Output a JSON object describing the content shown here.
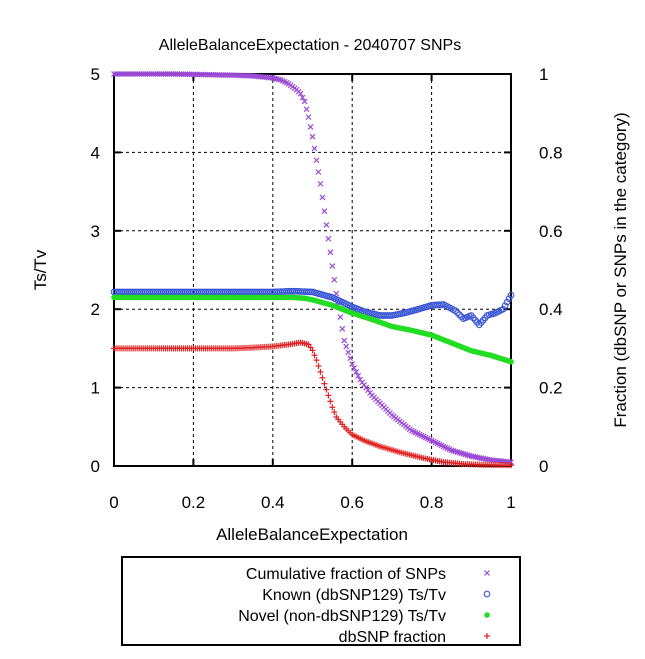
{
  "chart_data": {
    "type": "scatter",
    "title": "AlleleBalanceExpectation - 2040707 SNPs",
    "xlabel": "AlleleBalanceExpectation",
    "ylabel": "Ts/Tv",
    "y2label": "Fraction (dbSNP or SNPs in the category)",
    "xlim": [
      0,
      1
    ],
    "ylim": [
      0,
      5
    ],
    "y2lim": [
      0,
      1
    ],
    "xticks": [
      "0",
      "0.2",
      "0.4",
      "0.6",
      "0.8",
      "1"
    ],
    "yticks": [
      "0",
      "1",
      "2",
      "3",
      "4",
      "5"
    ],
    "y2ticks": [
      "0",
      "0.2",
      "0.4",
      "0.6",
      "0.8",
      "1"
    ],
    "grid": true,
    "legend_position": "bottom",
    "series": [
      {
        "name": "Cumulative fraction of SNPs",
        "axis": "y2",
        "marker": "x",
        "color": "#9b4bd6",
        "points": [
          [
            0.0,
            1.0
          ],
          [
            0.05,
            1.0
          ],
          [
            0.1,
            1.0
          ],
          [
            0.15,
            1.0
          ],
          [
            0.2,
            0.999
          ],
          [
            0.25,
            0.998
          ],
          [
            0.3,
            0.997
          ],
          [
            0.35,
            0.995
          ],
          [
            0.38,
            0.992
          ],
          [
            0.4,
            0.99
          ],
          [
            0.42,
            0.985
          ],
          [
            0.44,
            0.975
          ],
          [
            0.46,
            0.96
          ],
          [
            0.47,
            0.95
          ],
          [
            0.48,
            0.93
          ],
          [
            0.49,
            0.89
          ],
          [
            0.5,
            0.84
          ],
          [
            0.51,
            0.78
          ],
          [
            0.52,
            0.72
          ],
          [
            0.53,
            0.65
          ],
          [
            0.54,
            0.58
          ],
          [
            0.55,
            0.51
          ],
          [
            0.56,
            0.44
          ],
          [
            0.57,
            0.38
          ],
          [
            0.58,
            0.32
          ],
          [
            0.6,
            0.26
          ],
          [
            0.62,
            0.22
          ],
          [
            0.65,
            0.18
          ],
          [
            0.7,
            0.13
          ],
          [
            0.75,
            0.09
          ],
          [
            0.8,
            0.065
          ],
          [
            0.85,
            0.04
          ],
          [
            0.9,
            0.025
          ],
          [
            0.95,
            0.015
          ],
          [
            1.0,
            0.01
          ]
        ]
      },
      {
        "name": "Known (dbSNP129) Ts/Tv",
        "axis": "y",
        "marker": "circle",
        "color": "#3a55d6",
        "points": [
          [
            0.0,
            2.22
          ],
          [
            0.1,
            2.22
          ],
          [
            0.2,
            2.22
          ],
          [
            0.3,
            2.22
          ],
          [
            0.4,
            2.22
          ],
          [
            0.45,
            2.23
          ],
          [
            0.5,
            2.22
          ],
          [
            0.55,
            2.15
          ],
          [
            0.6,
            2.03
          ],
          [
            0.63,
            1.97
          ],
          [
            0.67,
            1.92
          ],
          [
            0.7,
            1.92
          ],
          [
            0.73,
            1.95
          ],
          [
            0.76,
            1.99
          ],
          [
            0.8,
            2.05
          ],
          [
            0.83,
            2.06
          ],
          [
            0.86,
            1.98
          ],
          [
            0.88,
            1.88
          ],
          [
            0.9,
            1.92
          ],
          [
            0.92,
            1.8
          ],
          [
            0.94,
            1.92
          ],
          [
            0.96,
            1.95
          ],
          [
            0.98,
            2.0
          ],
          [
            1.0,
            2.18
          ]
        ]
      },
      {
        "name": "Novel (non-dbSNP129) Ts/Tv",
        "axis": "y",
        "marker": "dot",
        "color": "#22dd22",
        "points": [
          [
            0.0,
            2.15
          ],
          [
            0.1,
            2.15
          ],
          [
            0.2,
            2.15
          ],
          [
            0.3,
            2.15
          ],
          [
            0.4,
            2.15
          ],
          [
            0.45,
            2.15
          ],
          [
            0.48,
            2.14
          ],
          [
            0.5,
            2.12
          ],
          [
            0.55,
            2.05
          ],
          [
            0.6,
            1.95
          ],
          [
            0.65,
            1.87
          ],
          [
            0.7,
            1.78
          ],
          [
            0.75,
            1.73
          ],
          [
            0.8,
            1.67
          ],
          [
            0.85,
            1.57
          ],
          [
            0.9,
            1.47
          ],
          [
            0.95,
            1.41
          ],
          [
            1.0,
            1.33
          ]
        ]
      },
      {
        "name": "dbSNP fraction",
        "axis": "y2",
        "marker": "plus",
        "color": "#e02020",
        "points": [
          [
            0.0,
            0.3
          ],
          [
            0.1,
            0.3
          ],
          [
            0.2,
            0.3
          ],
          [
            0.3,
            0.3
          ],
          [
            0.35,
            0.302
          ],
          [
            0.4,
            0.305
          ],
          [
            0.44,
            0.31
          ],
          [
            0.47,
            0.315
          ],
          [
            0.49,
            0.31
          ],
          [
            0.5,
            0.295
          ],
          [
            0.51,
            0.27
          ],
          [
            0.52,
            0.24
          ],
          [
            0.53,
            0.21
          ],
          [
            0.54,
            0.18
          ],
          [
            0.55,
            0.15
          ],
          [
            0.56,
            0.125
          ],
          [
            0.58,
            0.1
          ],
          [
            0.6,
            0.08
          ],
          [
            0.63,
            0.065
          ],
          [
            0.67,
            0.05
          ],
          [
            0.72,
            0.035
          ],
          [
            0.78,
            0.02
          ],
          [
            0.83,
            0.01
          ],
          [
            0.88,
            0.005
          ],
          [
            0.93,
            0.003
          ],
          [
            1.0,
            0.002
          ]
        ]
      }
    ]
  }
}
